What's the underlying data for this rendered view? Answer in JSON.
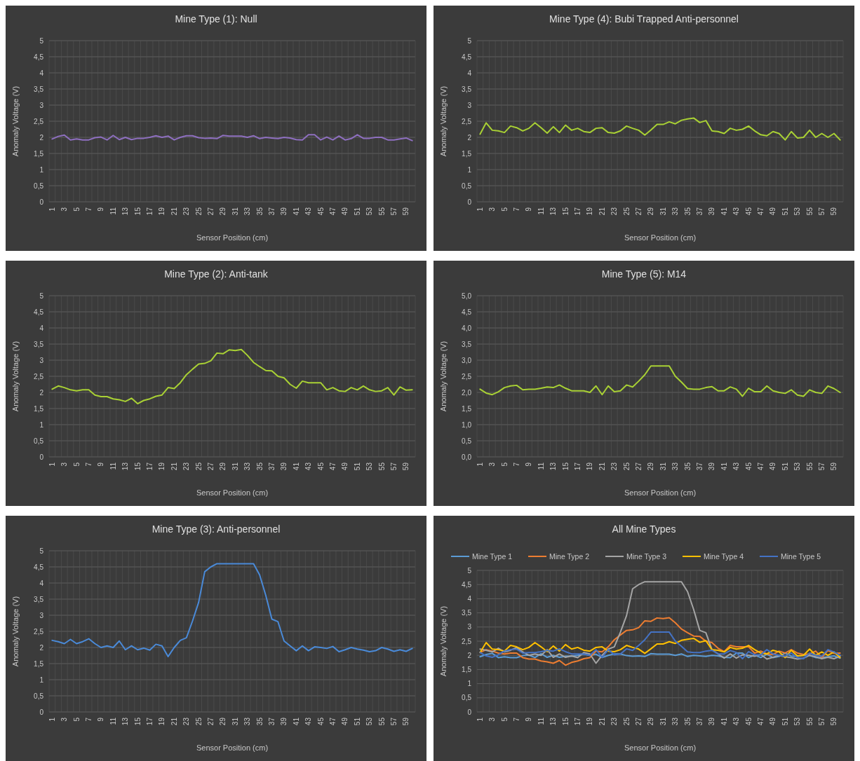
{
  "chart_data": [
    {
      "type": "line",
      "title": "Mine Type (1): Null",
      "xlabel": "Sensor Position (cm)",
      "ylabel": "Anomaly Voltage (V)",
      "categories": [
        "1",
        null,
        "3",
        null,
        "5",
        null,
        "7",
        null,
        "9",
        null,
        "11",
        null,
        "13",
        null,
        "15",
        null,
        "17",
        null,
        "19",
        null,
        "21",
        null,
        "23",
        null,
        "25",
        null,
        "27",
        null,
        "29",
        null,
        "31",
        null,
        "33",
        null,
        "35",
        null,
        "37",
        null,
        "39",
        null,
        "41",
        null,
        "43",
        null,
        "45",
        null,
        "47",
        null,
        "49",
        null,
        "51",
        null,
        "53",
        null,
        "55",
        null,
        "57",
        null,
        "59",
        null
      ],
      "ylim": [
        0,
        5
      ],
      "yticks": [
        0,
        {
          "value": 0.5,
          "label": "0,5"
        },
        1,
        {
          "value": 1.5,
          "label": "1,5"
        },
        2,
        {
          "value": 2.5,
          "label": "2,5"
        },
        3,
        {
          "value": 3.5,
          "label": "3,5"
        },
        4,
        {
          "value": 4.5,
          "label": "4,5"
        },
        5
      ],
      "grid": true,
      "series": [
        {
          "color": "#8e6fc0",
          "values": [
            1.95,
            2.03,
            2.07,
            1.92,
            1.95,
            1.92,
            1.92,
            1.99,
            2.01,
            1.92,
            2.06,
            1.93,
            2.0,
            1.93,
            1.97,
            1.97,
            2.0,
            2.05,
            2.0,
            2.04,
            1.92,
            2.0,
            2.05,
            2.05,
            1.99,
            1.97,
            1.98,
            1.96,
            2.06,
            2.04,
            2.04,
            2.04,
            2.0,
            2.05,
            1.96,
            2.0,
            1.98,
            1.96,
            2.0,
            1.98,
            1.93,
            1.92,
            2.08,
            2.08,
            1.92,
            2.01,
            1.92,
            2.04,
            1.92,
            1.96,
            2.08,
            1.97,
            1.97,
            2.0,
            2.0,
            1.92,
            1.92,
            1.95,
            1.98,
            1.9
          ]
        }
      ]
    },
    {
      "type": "line",
      "title": "Mine Type (4): Bubi Trapped Anti-personnel",
      "xlabel": "Sensor Position (cm)",
      "ylabel": "Anomaly Voltage (V)",
      "categories": [
        "1",
        null,
        "3",
        null,
        "5",
        null,
        "7",
        null,
        "9",
        null,
        "11",
        null,
        "13",
        null,
        "15",
        null,
        "17",
        null,
        "19",
        null,
        "21",
        null,
        "23",
        null,
        "25",
        null,
        "27",
        null,
        "29",
        null,
        "31",
        null,
        "33",
        null,
        "35",
        null,
        "37",
        null,
        "39",
        null,
        "41",
        null,
        "43",
        null,
        "45",
        null,
        "47",
        null,
        "49",
        null,
        "51",
        null,
        "53",
        null,
        "55",
        null,
        "57",
        null,
        "59",
        null
      ],
      "ylim": [
        0,
        5
      ],
      "yticks": [
        0,
        {
          "value": 0.5,
          "label": "0,5"
        },
        1,
        {
          "value": 1.5,
          "label": "1,5"
        },
        2,
        {
          "value": 2.5,
          "label": "2,5"
        },
        3,
        {
          "value": 3.5,
          "label": "3,5"
        },
        4,
        {
          "value": 4.5,
          "label": "4,5"
        },
        5
      ],
      "grid": true,
      "series": [
        {
          "color": "#a9d134",
          "values": [
            2.1,
            2.45,
            2.22,
            2.2,
            2.15,
            2.35,
            2.3,
            2.2,
            2.28,
            2.45,
            2.3,
            2.13,
            2.33,
            2.15,
            2.38,
            2.22,
            2.28,
            2.18,
            2.15,
            2.28,
            2.3,
            2.15,
            2.13,
            2.2,
            2.35,
            2.28,
            2.22,
            2.07,
            2.23,
            2.4,
            2.4,
            2.48,
            2.42,
            2.53,
            2.57,
            2.6,
            2.46,
            2.52,
            2.2,
            2.18,
            2.12,
            2.28,
            2.22,
            2.25,
            2.35,
            2.2,
            2.08,
            2.05,
            2.18,
            2.12,
            1.92,
            2.18,
            1.98,
            2.0,
            2.22,
            2.0,
            2.12,
            2.0,
            2.12,
            1.92
          ]
        }
      ]
    },
    {
      "type": "line",
      "title": "Mine Type (2): Anti-tank",
      "xlabel": "Sensor Position (cm)",
      "ylabel": "Anomaly Voltage (V)",
      "categories": [
        "1",
        null,
        "3",
        null,
        "5",
        null,
        "7",
        null,
        "9",
        null,
        "11",
        null,
        "13",
        null,
        "15",
        null,
        "17",
        null,
        "19",
        null,
        "21",
        null,
        "23",
        null,
        "25",
        null,
        "27",
        null,
        "29",
        null,
        "31",
        null,
        "33",
        null,
        "35",
        null,
        "37",
        null,
        "39",
        null,
        "41",
        null,
        "43",
        null,
        "45",
        null,
        "47",
        null,
        "49",
        null,
        "51",
        null,
        "53",
        null,
        "55",
        null,
        "57",
        null,
        "59",
        null
      ],
      "ylim": [
        0,
        5
      ],
      "yticks": [
        0,
        {
          "value": 0.5,
          "label": "0,5"
        },
        1,
        {
          "value": 1.5,
          "label": "1,5"
        },
        2,
        {
          "value": 2.5,
          "label": "2,5"
        },
        3,
        {
          "value": 3.5,
          "label": "3,5"
        },
        4,
        {
          "value": 4.5,
          "label": "4,5"
        },
        5
      ],
      "grid": true,
      "series": [
        {
          "color": "#a9d134",
          "values": [
            2.1,
            2.2,
            2.15,
            2.08,
            2.05,
            2.08,
            2.08,
            1.92,
            1.87,
            1.87,
            1.8,
            1.77,
            1.72,
            1.82,
            1.65,
            1.75,
            1.8,
            1.88,
            1.92,
            2.15,
            2.12,
            2.3,
            2.55,
            2.72,
            2.88,
            2.9,
            2.98,
            3.22,
            3.2,
            3.32,
            3.3,
            3.33,
            3.15,
            2.93,
            2.8,
            2.68,
            2.67,
            2.5,
            2.45,
            2.25,
            2.13,
            2.35,
            2.3,
            2.3,
            2.3,
            2.08,
            2.15,
            2.05,
            2.03,
            2.15,
            2.08,
            2.2,
            2.08,
            2.03,
            2.05,
            2.15,
            1.92,
            2.17,
            2.07,
            2.08
          ]
        }
      ]
    },
    {
      "type": "line",
      "title": "Mine Type (5): M14",
      "xlabel": "Sensor Position (cm)",
      "ylabel": "Anomaly Voltage (V)",
      "categories": [
        "1",
        null,
        "3",
        null,
        "5",
        null,
        "7",
        null,
        "9",
        null,
        "11",
        null,
        "13",
        null,
        "15",
        null,
        "17",
        null,
        "19",
        null,
        "21",
        null,
        "23",
        null,
        "25",
        null,
        "27",
        null,
        "29",
        null,
        "31",
        null,
        "33",
        null,
        "35",
        null,
        "37",
        null,
        "39",
        null,
        "41",
        null,
        "43",
        null,
        "45",
        null,
        "47",
        null,
        "49",
        null,
        "51",
        null,
        "53",
        null,
        "55",
        null,
        "57",
        null,
        "59",
        null
      ],
      "ylim": [
        0,
        5
      ],
      "yticks": [
        {
          "value": 0,
          "label": "0,0"
        },
        {
          "value": 0.5,
          "label": "0,5"
        },
        {
          "value": 1,
          "label": "1,0"
        },
        {
          "value": 1.5,
          "label": "1,5"
        },
        {
          "value": 2,
          "label": "2,0"
        },
        {
          "value": 2.5,
          "label": "2,5"
        },
        {
          "value": 3,
          "label": "3,0"
        },
        {
          "value": 3.5,
          "label": "3,5"
        },
        {
          "value": 4,
          "label": "4,0"
        },
        {
          "value": 4.5,
          "label": "4,5"
        },
        {
          "value": 5,
          "label": "5,0"
        }
      ],
      "grid": true,
      "series": [
        {
          "color": "#a9d134",
          "values": [
            2.1,
            1.98,
            1.93,
            2.02,
            2.15,
            2.2,
            2.22,
            2.08,
            2.1,
            2.1,
            2.13,
            2.17,
            2.15,
            2.23,
            2.13,
            2.05,
            2.05,
            2.05,
            2.0,
            2.2,
            1.93,
            2.2,
            2.02,
            2.05,
            2.23,
            2.17,
            2.35,
            2.55,
            2.82,
            2.82,
            2.82,
            2.82,
            2.5,
            2.32,
            2.12,
            2.1,
            2.1,
            2.15,
            2.18,
            2.05,
            2.05,
            2.17,
            2.1,
            1.88,
            2.13,
            2.02,
            2.02,
            2.2,
            2.05,
            2.0,
            1.97,
            2.08,
            1.92,
            1.88,
            2.08,
            2.0,
            1.97,
            2.2,
            2.12,
            2.0
          ]
        }
      ]
    },
    {
      "type": "line",
      "title": "Mine Type (3): Anti-personnel",
      "xlabel": "Sensor Position (cm)",
      "ylabel": "Anomaly Voltage (V)",
      "categories": [
        "1",
        null,
        "3",
        null,
        "5",
        null,
        "7",
        null,
        "9",
        null,
        "11",
        null,
        "13",
        null,
        "15",
        null,
        "17",
        null,
        "19",
        null,
        "21",
        null,
        "23",
        null,
        "25",
        null,
        "27",
        null,
        "29",
        null,
        "31",
        null,
        "33",
        null,
        "35",
        null,
        "37",
        null,
        "39",
        null,
        "41",
        null,
        "43",
        null,
        "45",
        null,
        "47",
        null,
        "49",
        null,
        "51",
        null,
        "53",
        null,
        "55",
        null,
        "57",
        null,
        "59",
        null
      ],
      "ylim": [
        0,
        5
      ],
      "yticks": [
        0,
        {
          "value": 0.5,
          "label": "0,5"
        },
        1,
        {
          "value": 1.5,
          "label": "1,5"
        },
        2,
        {
          "value": 2.5,
          "label": "2,5"
        },
        3,
        {
          "value": 3.5,
          "label": "3,5"
        },
        4,
        {
          "value": 4.5,
          "label": "4,5"
        },
        5
      ],
      "grid": true,
      "series": [
        {
          "color": "#4a8ad8",
          "values": [
            2.22,
            2.18,
            2.12,
            2.25,
            2.12,
            2.18,
            2.27,
            2.12,
            2.0,
            2.05,
            2.0,
            2.2,
            1.93,
            2.05,
            1.93,
            1.98,
            1.92,
            2.1,
            2.05,
            1.72,
            2.0,
            2.22,
            2.3,
            2.82,
            3.4,
            4.35,
            4.5,
            4.6,
            4.6,
            4.6,
            4.6,
            4.6,
            4.6,
            4.6,
            4.25,
            3.62,
            2.88,
            2.8,
            2.2,
            2.05,
            1.9,
            2.05,
            1.9,
            2.02,
            2.0,
            1.97,
            2.03,
            1.87,
            1.93,
            2.0,
            1.95,
            1.92,
            1.87,
            1.9,
            2.0,
            1.95,
            1.88,
            1.93,
            1.88,
            1.97
          ]
        }
      ]
    },
    {
      "type": "line",
      "title": "All Mine Types",
      "xlabel": "Sensor Position (cm)",
      "ylabel": "Anomaly Voltage (V)",
      "categories": [
        "1",
        null,
        "3",
        null,
        "5",
        null,
        "7",
        null,
        "9",
        null,
        "11",
        null,
        "13",
        null,
        "15",
        null,
        "17",
        null,
        "19",
        null,
        "21",
        null,
        "23",
        null,
        "25",
        null,
        "27",
        null,
        "29",
        null,
        "31",
        null,
        "33",
        null,
        "35",
        null,
        "37",
        null,
        "39",
        null,
        "41",
        null,
        "43",
        null,
        "45",
        null,
        "47",
        null,
        "49",
        null,
        "51",
        null,
        "53",
        null,
        "55",
        null,
        "57",
        null,
        "59",
        null
      ],
      "ylim": [
        0,
        5
      ],
      "yticks": [
        0,
        {
          "value": 0.5,
          "label": "0,5"
        },
        1,
        {
          "value": 1.5,
          "label": "1,5"
        },
        2,
        {
          "value": 2.5,
          "label": "2,5"
        },
        3,
        {
          "value": 3.5,
          "label": "3,5"
        },
        4,
        {
          "value": 4.5,
          "label": "4,5"
        },
        5
      ],
      "grid": true,
      "legend": "top",
      "series": [
        {
          "name": "Mine Type 1",
          "color": "#5b9bd5",
          "values": [
            1.95,
            2.03,
            2.07,
            1.92,
            1.95,
            1.92,
            1.92,
            1.99,
            2.01,
            1.92,
            2.06,
            1.93,
            2.0,
            1.93,
            1.97,
            1.97,
            2.0,
            2.05,
            2.0,
            2.04,
            1.92,
            2.0,
            2.05,
            2.05,
            1.99,
            1.97,
            1.98,
            1.96,
            2.06,
            2.04,
            2.04,
            2.04,
            2.0,
            2.05,
            1.96,
            2.0,
            1.98,
            1.96,
            2.0,
            1.98,
            1.93,
            1.92,
            2.08,
            2.08,
            1.92,
            2.01,
            1.92,
            2.04,
            1.92,
            1.96,
            2.08,
            1.97,
            1.97,
            2.0,
            2.0,
            1.92,
            1.92,
            1.95,
            1.98,
            1.9
          ]
        },
        {
          "name": "Mine Type 2",
          "color": "#ed7d31",
          "values": [
            2.1,
            2.2,
            2.15,
            2.08,
            2.05,
            2.08,
            2.08,
            1.92,
            1.87,
            1.87,
            1.8,
            1.77,
            1.72,
            1.82,
            1.65,
            1.75,
            1.8,
            1.88,
            1.92,
            2.15,
            2.12,
            2.3,
            2.55,
            2.72,
            2.88,
            2.9,
            2.98,
            3.22,
            3.2,
            3.32,
            3.3,
            3.33,
            3.15,
            2.93,
            2.8,
            2.68,
            2.67,
            2.5,
            2.45,
            2.25,
            2.13,
            2.35,
            2.3,
            2.3,
            2.3,
            2.08,
            2.15,
            2.05,
            2.03,
            2.15,
            2.08,
            2.2,
            2.08,
            2.03,
            2.05,
            2.15,
            1.92,
            2.17,
            2.07,
            2.08
          ]
        },
        {
          "name": "Mine Type 3",
          "color": "#a5a5a5",
          "values": [
            2.22,
            2.18,
            2.12,
            2.25,
            2.12,
            2.18,
            2.27,
            2.12,
            2.0,
            2.05,
            2.0,
            2.2,
            1.93,
            2.05,
            1.93,
            1.98,
            1.92,
            2.1,
            2.05,
            1.72,
            2.0,
            2.22,
            2.3,
            2.82,
            3.4,
            4.35,
            4.5,
            4.6,
            4.6,
            4.6,
            4.6,
            4.6,
            4.6,
            4.6,
            4.25,
            3.62,
            2.88,
            2.8,
            2.2,
            2.05,
            1.9,
            2.05,
            1.9,
            2.02,
            2.0,
            1.97,
            2.03,
            1.87,
            1.93,
            2.0,
            1.95,
            1.92,
            1.87,
            1.9,
            2.0,
            1.95,
            1.88,
            1.93,
            1.88,
            1.97
          ]
        },
        {
          "name": "Mine Type 4",
          "color": "#ffc000",
          "values": [
            2.1,
            2.45,
            2.22,
            2.2,
            2.15,
            2.35,
            2.3,
            2.2,
            2.28,
            2.45,
            2.3,
            2.13,
            2.33,
            2.15,
            2.38,
            2.22,
            2.28,
            2.18,
            2.15,
            2.28,
            2.3,
            2.15,
            2.13,
            2.2,
            2.35,
            2.28,
            2.22,
            2.07,
            2.23,
            2.4,
            2.4,
            2.48,
            2.42,
            2.53,
            2.57,
            2.6,
            2.46,
            2.52,
            2.2,
            2.18,
            2.12,
            2.28,
            2.22,
            2.25,
            2.35,
            2.2,
            2.08,
            2.05,
            2.18,
            2.12,
            1.92,
            2.18,
            1.98,
            2.0,
            2.22,
            2.0,
            2.12,
            2.0,
            2.12,
            1.92
          ]
        },
        {
          "name": "Mine Type 5",
          "color": "#4472c4",
          "values": [
            2.1,
            1.98,
            1.93,
            2.02,
            2.15,
            2.2,
            2.22,
            2.08,
            2.1,
            2.1,
            2.13,
            2.17,
            2.15,
            2.23,
            2.13,
            2.05,
            2.05,
            2.05,
            2.0,
            2.2,
            1.93,
            2.2,
            2.02,
            2.05,
            2.23,
            2.17,
            2.35,
            2.55,
            2.82,
            2.82,
            2.82,
            2.82,
            2.5,
            2.32,
            2.12,
            2.1,
            2.1,
            2.15,
            2.18,
            2.05,
            2.05,
            2.17,
            2.1,
            1.88,
            2.13,
            2.02,
            2.02,
            2.2,
            2.05,
            2.0,
            1.97,
            2.08,
            1.92,
            1.88,
            2.08,
            2.0,
            1.97,
            2.2,
            2.12,
            2.0
          ]
        }
      ]
    }
  ]
}
